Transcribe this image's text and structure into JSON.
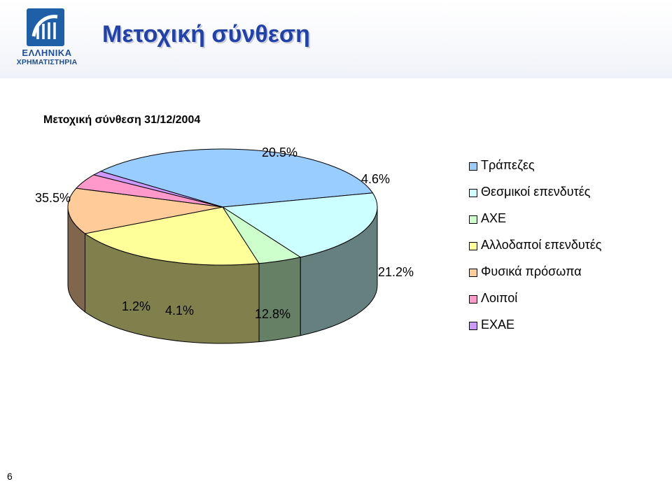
{
  "header": {
    "logo_line1": "ΕΛΛΗΝΙΚΑ",
    "logo_line2": "ΧΡΗΜΑΤΙΣΤΗΡΙΑ",
    "title": "Μετοχική σύνθεση"
  },
  "colors": {
    "title": "#2142a8",
    "logo": "#1f5fa8"
  },
  "chart_data": {
    "type": "pie",
    "title": "Μετοχική σύνθεση 31/12/2004",
    "three_d": true,
    "legend_position": "right",
    "categories": [
      "Τράπεζες",
      "Θεσμικοί επενδυτές",
      "ΑΧΕ",
      "Αλλοδαποί επενδυτές",
      "Φυσικά πρόσωπα",
      "Λοιποί",
      "ΕΧΑΕ"
    ],
    "values": [
      35.5,
      20.5,
      4.6,
      21.2,
      12.8,
      4.1,
      1.2
    ],
    "labels": [
      "35.5%",
      "20.5%",
      "4.6%",
      "21.2%",
      "12.8%",
      "4.1%",
      "1.2%"
    ],
    "colors": [
      "#99ccff",
      "#ccffff",
      "#ccffcc",
      "#ffff99",
      "#ffcc99",
      "#ff99cc",
      "#cc99ff"
    ]
  },
  "slide_number": "6"
}
